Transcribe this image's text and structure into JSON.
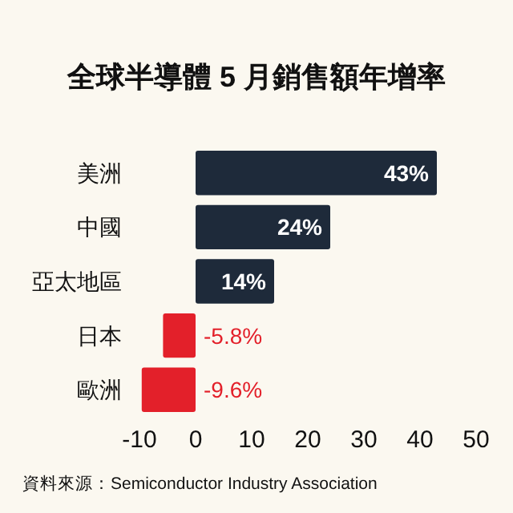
{
  "chart_data": {
    "type": "bar",
    "orientation": "horizontal",
    "title": "全球半導體 5 月銷售額年增率",
    "categories": [
      "美洲",
      "中國",
      "亞太地區",
      "日本",
      "歐洲"
    ],
    "values": [
      43,
      24,
      14,
      -5.8,
      -9.6
    ],
    "colors": [
      "#1e2a3a",
      "#1e2a3a",
      "#1e2a3a",
      "#e3202a",
      "#e3202a"
    ],
    "value_labels": [
      "43%",
      "24%",
      "14%",
      "-5.8%",
      "-9.6%"
    ],
    "xlim": [
      -10,
      50
    ],
    "xticks": [
      -10,
      0,
      10,
      20,
      30,
      40,
      50
    ],
    "grid": false,
    "annotations": [
      "資料來源：Semiconductor Industry Association"
    ]
  }
}
